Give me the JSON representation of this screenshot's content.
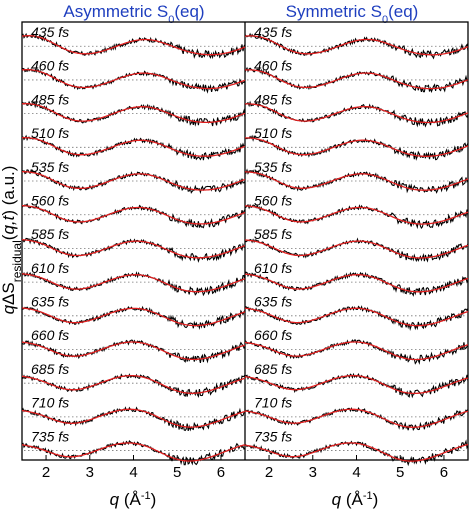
{
  "chart_data": {
    "type": "line",
    "ylabel": "qΔS_residual(q,t) (a.u.)",
    "xlabel": "q (Å⁻¹)",
    "xlim": [
      1.45,
      6.55
    ],
    "xticks": [
      2,
      3,
      4,
      5,
      6
    ],
    "panels": [
      {
        "title": "Asymmetric S0(eq)"
      },
      {
        "title": "Symmetric S0(eq)"
      }
    ],
    "time_labels": [
      "435 fs",
      "460 fs",
      "485 fs",
      "510 fs",
      "535 fs",
      "560 fs",
      "585 fs",
      "610 fs",
      "635 fs",
      "660 fs",
      "685 fs",
      "710 fs",
      "735 fs"
    ],
    "series": [
      {
        "color": "#000000",
        "role": "data"
      },
      {
        "color": "#e02020",
        "role": "fit"
      }
    ],
    "baseline_style": "dotted",
    "grid": false
  }
}
